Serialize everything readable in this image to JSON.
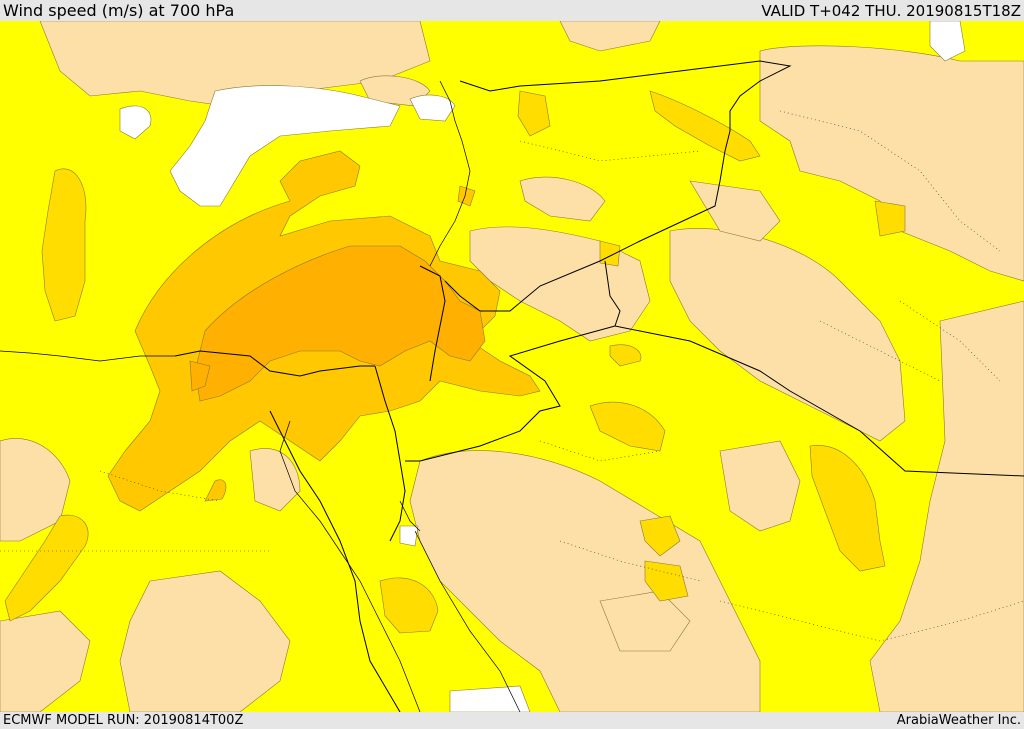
{
  "header": {
    "title": "Wind speed (m/s) at 700 hPa",
    "valid": "VALID T+042 THU. 20190815T18Z"
  },
  "footer": {
    "model_run": "ECMWF MODEL RUN: 20190814T00Z",
    "credit": "ArabiaWeather Inc."
  },
  "palette": {
    "calm": "#ffffff",
    "low": "#fde0a8",
    "moderate": "#ffff00",
    "fresh": "#ffdd00",
    "strong": "#ffc800",
    "very_strong": "#ffb000",
    "border": "#000000"
  }
}
